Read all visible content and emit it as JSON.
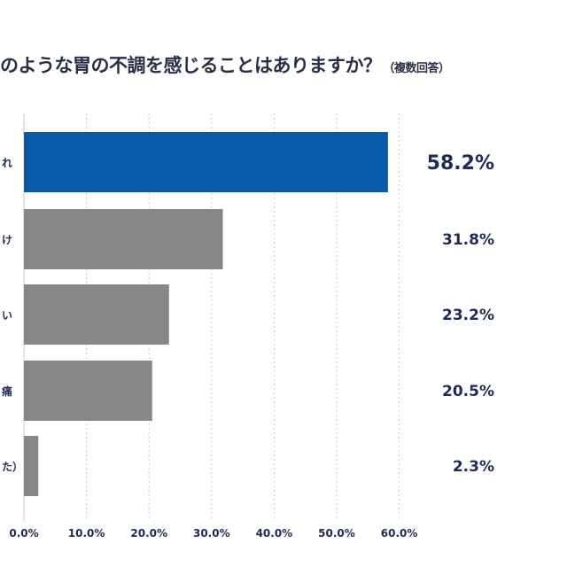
{
  "chart_data": {
    "type": "bar",
    "orientation": "horizontal",
    "title": "のような胃の不調を感じることはありますか？",
    "subtitle": "（複数回答）",
    "categories": [
      "れ",
      "け",
      "い",
      "痛",
      "た）"
    ],
    "values": [
      58.2,
      31.8,
      23.2,
      20.5,
      2.3
    ],
    "value_labels": [
      "58.2%",
      "31.8%",
      "23.2%",
      "20.5%",
      "2.3%"
    ],
    "xlim": [
      0,
      60
    ],
    "x_ticks": [
      "0.0%",
      "10.0%",
      "20.0%",
      "30.0%",
      "40.0%",
      "50.0%",
      "60.0%"
    ],
    "grid": "vertical dotted",
    "highlight_color": "#0b5aa8",
    "bar_color": "#878787",
    "highlight_label_color": "#0b5aa8",
    "label_color": "#1f2b52"
  }
}
